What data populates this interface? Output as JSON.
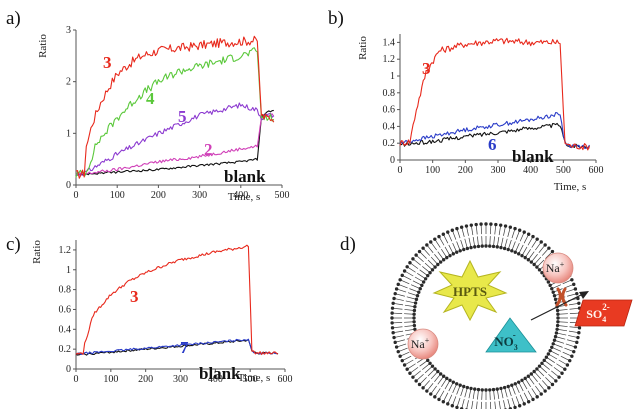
{
  "figure": {
    "panels": [
      {
        "letter": "a)"
      },
      {
        "letter": "b)"
      },
      {
        "letter": "c)"
      },
      {
        "letter": "d)"
      }
    ],
    "diagram": {
      "probe": "HPTS",
      "cation": "Na",
      "cation_charge": "+",
      "anion_inside_base": "NO",
      "anion_inside_sub": "3",
      "anion_inside_sup": "-",
      "anion_outside_base": "SO",
      "anion_outside_sub": "4",
      "anion_outside_sup": "2-"
    }
  },
  "chart_data": [
    {
      "type": "line",
      "panel": "a)",
      "xlabel": "Time, s",
      "ylabel": "Ratio",
      "xlim": [
        0,
        500
      ],
      "ylim": [
        0,
        3
      ],
      "xticks": [
        0,
        100,
        200,
        300,
        400,
        500
      ],
      "yticks": [
        0,
        1,
        2,
        3
      ],
      "series": [
        {
          "name": "3",
          "color": "#e8291c",
          "noise": 0.09,
          "x": [
            0,
            20,
            25,
            40,
            60,
            80,
            100,
            130,
            160,
            200,
            250,
            300,
            350,
            400,
            440,
            450,
            460,
            480
          ],
          "y": [
            0.2,
            0.22,
            0.75,
            1.2,
            1.6,
            1.9,
            2.15,
            2.35,
            2.5,
            2.6,
            2.65,
            2.7,
            2.75,
            2.78,
            2.8,
            1.35,
            1.3,
            1.3
          ]
        },
        {
          "name": "4",
          "color": "#5ac83a",
          "noise": 0.08,
          "x": [
            0,
            25,
            50,
            100,
            150,
            200,
            250,
            300,
            350,
            400,
            440,
            450,
            460,
            480
          ],
          "y": [
            0.2,
            0.25,
            0.8,
            1.3,
            1.7,
            2.0,
            2.2,
            2.3,
            2.4,
            2.5,
            2.6,
            1.3,
            1.3,
            1.3
          ]
        },
        {
          "name": "5",
          "color": "#8c3ad0",
          "noise": 0.05,
          "x": [
            0,
            25,
            100,
            200,
            300,
            400,
            440,
            450,
            460,
            480
          ],
          "y": [
            0.2,
            0.25,
            0.6,
            1.0,
            1.35,
            1.55,
            1.45,
            1.3,
            1.35,
            1.35
          ]
        },
        {
          "name": "2",
          "color": "#d040b8",
          "noise": 0.03,
          "x": [
            0,
            25,
            100,
            200,
            300,
            400,
            440,
            450,
            460,
            480
          ],
          "y": [
            0.2,
            0.22,
            0.3,
            0.45,
            0.55,
            0.7,
            0.75,
            1.3,
            1.35,
            1.35
          ]
        },
        {
          "name": "blank",
          "color": "#111111",
          "noise": 0.02,
          "x": [
            0,
            100,
            200,
            300,
            400,
            440,
            450,
            460,
            480
          ],
          "y": [
            0.2,
            0.25,
            0.3,
            0.38,
            0.45,
            0.5,
            1.3,
            1.4,
            1.45
          ]
        }
      ]
    },
    {
      "type": "line",
      "panel": "b)",
      "xlabel": "Time, s",
      "ylabel": "Ratio",
      "xlim": [
        0,
        600
      ],
      "ylim": [
        0,
        1.5
      ],
      "xticks": [
        0,
        100,
        200,
        300,
        400,
        500,
        600
      ],
      "yticks": [
        0,
        0.2,
        0.4,
        0.6,
        0.8,
        1.0,
        1.2,
        1.4
      ],
      "series": [
        {
          "name": "3",
          "color": "#e8291c",
          "noise": 0.04,
          "x": [
            0,
            30,
            50,
            80,
            120,
            200,
            300,
            400,
            490,
            505,
            520,
            560,
            580
          ],
          "y": [
            0.2,
            0.22,
            0.6,
            1.05,
            1.3,
            1.38,
            1.42,
            1.4,
            1.4,
            0.2,
            0.17,
            0.16,
            0.16
          ]
        },
        {
          "name": "6",
          "color": "#2a3cc8",
          "noise": 0.025,
          "x": [
            0,
            100,
            200,
            300,
            400,
            490,
            505,
            520,
            580
          ],
          "y": [
            0.2,
            0.28,
            0.36,
            0.42,
            0.48,
            0.55,
            0.2,
            0.17,
            0.16
          ]
        },
        {
          "name": "blank",
          "color": "#111111",
          "noise": 0.025,
          "x": [
            0,
            100,
            200,
            300,
            400,
            490,
            505,
            520,
            580
          ],
          "y": [
            0.18,
            0.22,
            0.28,
            0.33,
            0.38,
            0.42,
            0.2,
            0.17,
            0.16
          ]
        }
      ]
    },
    {
      "type": "line",
      "panel": "c)",
      "xlabel": "Time, s",
      "ylabel": "Ratio",
      "xlim": [
        0,
        600
      ],
      "ylim": [
        0,
        1.3
      ],
      "xticks": [
        0,
        100,
        200,
        300,
        400,
        500,
        600
      ],
      "yticks": [
        0,
        0.2,
        0.4,
        0.6,
        0.8,
        1.0,
        1.2
      ],
      "series": [
        {
          "name": "3",
          "color": "#e8291c",
          "noise": 0.015,
          "x": [
            0,
            20,
            25,
            50,
            100,
            150,
            200,
            250,
            300,
            350,
            400,
            450,
            495,
            505,
            520,
            580
          ],
          "y": [
            0.15,
            0.16,
            0.25,
            0.55,
            0.75,
            0.88,
            0.97,
            1.04,
            1.1,
            1.14,
            1.18,
            1.21,
            1.24,
            0.18,
            0.16,
            0.16
          ]
        },
        {
          "name": "7",
          "color": "#2a3cc8",
          "noise": 0.01,
          "x": [
            0,
            100,
            200,
            300,
            400,
            495,
            505,
            520,
            580
          ],
          "y": [
            0.15,
            0.18,
            0.21,
            0.24,
            0.27,
            0.3,
            0.18,
            0.16,
            0.16
          ]
        },
        {
          "name": "blank",
          "color": "#111111",
          "noise": 0.01,
          "x": [
            0,
            100,
            200,
            300,
            400,
            495,
            505,
            520,
            580
          ],
          "y": [
            0.14,
            0.17,
            0.2,
            0.23,
            0.26,
            0.29,
            0.18,
            0.16,
            0.16
          ]
        }
      ]
    }
  ]
}
